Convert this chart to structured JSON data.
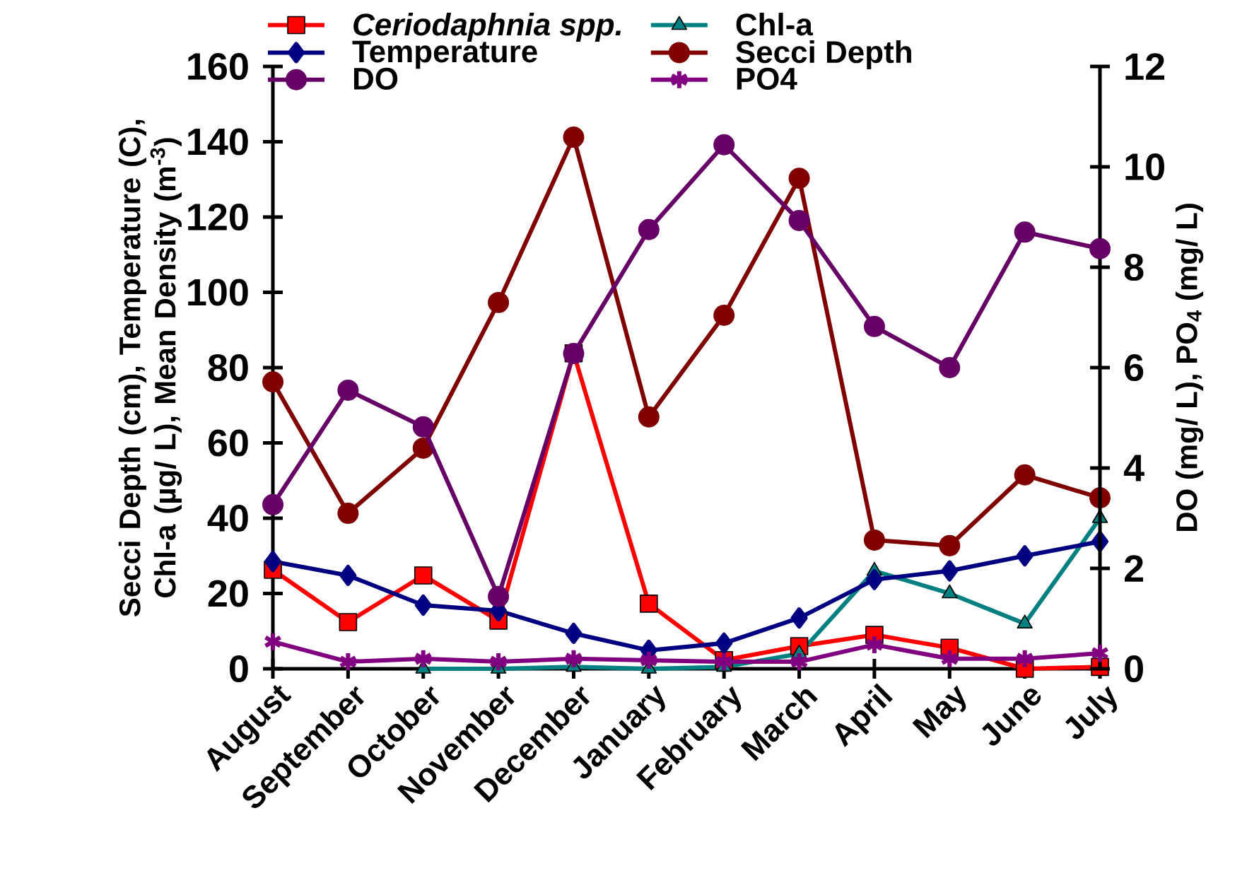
{
  "chart_data": {
    "type": "line",
    "categories": [
      "August",
      "September",
      "October",
      "November",
      "December",
      "January",
      "February",
      "March",
      "April",
      "May",
      "June",
      "July"
    ],
    "ylabel": "Secci Depth (cm), Temperature (C), Chl-a (µg/ L), Mean Density (m$^{-3}$)",
    "y2label": "DO (mg/ L), PO$_{4}$ (mg/ L)",
    "ylim": [
      0,
      160
    ],
    "yticks": [
      0,
      20,
      40,
      60,
      80,
      100,
      120,
      140,
      160
    ],
    "y2lim": [
      0,
      12
    ],
    "y2ticks": [
      0,
      2,
      4,
      6,
      8,
      10,
      12
    ],
    "legend": "top",
    "grid": false,
    "series": [
      {
        "name": "*Ceriodaphnia spp.*",
        "color": "#ff0000",
        "marker": "square",
        "values": [
          26.3,
          12.4,
          24.8,
          12.8,
          83.8,
          17.3,
          2.3,
          6,
          9,
          5.6,
          0,
          0.5
        ]
      },
      {
        "name": "Chl-a",
        "color": "#008080",
        "marker": "triangle",
        "values": [
          null,
          null,
          0,
          0,
          0.5,
          0,
          0.5,
          4,
          26,
          20,
          12,
          40
        ]
      },
      {
        "name": "Temperature",
        "color": "#000080",
        "marker": "diamond",
        "values": [
          28.5,
          24.8,
          16.9,
          15.4,
          9.4,
          4.9,
          6.8,
          13.5,
          23.7,
          26,
          30,
          33.8
        ]
      },
      {
        "name": "Secci Depth",
        "color": "#800000",
        "marker": "circle",
        "values": [
          76.2,
          41.3,
          58.6,
          97.3,
          141.2,
          66.9,
          93.9,
          130.3,
          34.2,
          32.7,
          51.5,
          45.4
        ]
      },
      {
        "name": "DO",
        "color": "#660066",
        "marker": "circle",
        "axis": "y2",
        "values": [
          3.27,
          5.55,
          4.82,
          1.44,
          6.28,
          8.75,
          10.44,
          8.93,
          6.82,
          6.0,
          8.7,
          8.37
        ]
      },
      {
        "name": "PO4",
        "color": "#800080",
        "marker": "cross",
        "axis": "y2",
        "values": [
          0.54,
          0.14,
          0.2,
          0.14,
          0.2,
          0.17,
          0.14,
          0.14,
          0.48,
          0.2,
          0.2,
          0.31
        ]
      }
    ]
  }
}
